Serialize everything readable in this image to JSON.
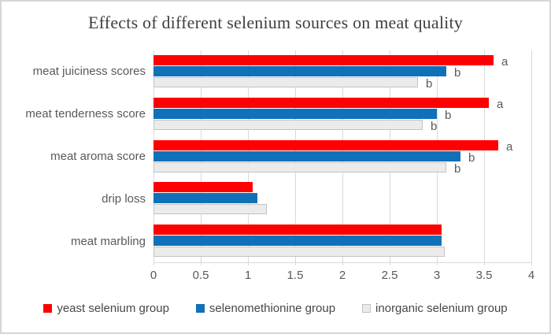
{
  "frame": {
    "background": "#ffffff",
    "border_color": "#d6d6d6"
  },
  "chart_data": {
    "type": "bar",
    "orientation": "horizontal",
    "title": "Effects of different selenium sources on meat quality",
    "categories": [
      "meat juiciness scores",
      "meat tenderness score",
      "meat aroma score",
      "drip loss",
      "meat marbling"
    ],
    "series": [
      {
        "name": "yeast selenium group",
        "color": "#ff0000",
        "border": "",
        "values": [
          3.6,
          3.55,
          3.65,
          1.05,
          3.05
        ],
        "point_labels": [
          "a",
          "a",
          "a",
          "",
          ""
        ]
      },
      {
        "name": "selenomethionine group",
        "color": "#1171b8",
        "border": "",
        "values": [
          3.1,
          3.0,
          3.25,
          1.1,
          3.05
        ],
        "point_labels": [
          "b",
          "b",
          "b",
          "",
          ""
        ]
      },
      {
        "name": "inorganic selenium group",
        "color": "#ebebeb",
        "border": "#c3c3c3",
        "values": [
          2.8,
          2.85,
          3.1,
          1.2,
          3.08
        ],
        "point_labels": [
          "b",
          "b",
          "b",
          "",
          ""
        ]
      }
    ],
    "x_axis": {
      "min": 0,
      "max": 4,
      "step": 0.5,
      "ticks": [
        "0",
        "0.5",
        "1",
        "1.5",
        "2",
        "2.5",
        "3",
        "3.5",
        "4"
      ]
    },
    "grid": true,
    "gridline_color": "#d9d9d9",
    "legend_position": "bottom",
    "text_color": "#595959",
    "title_color": "#3f3f3f"
  }
}
